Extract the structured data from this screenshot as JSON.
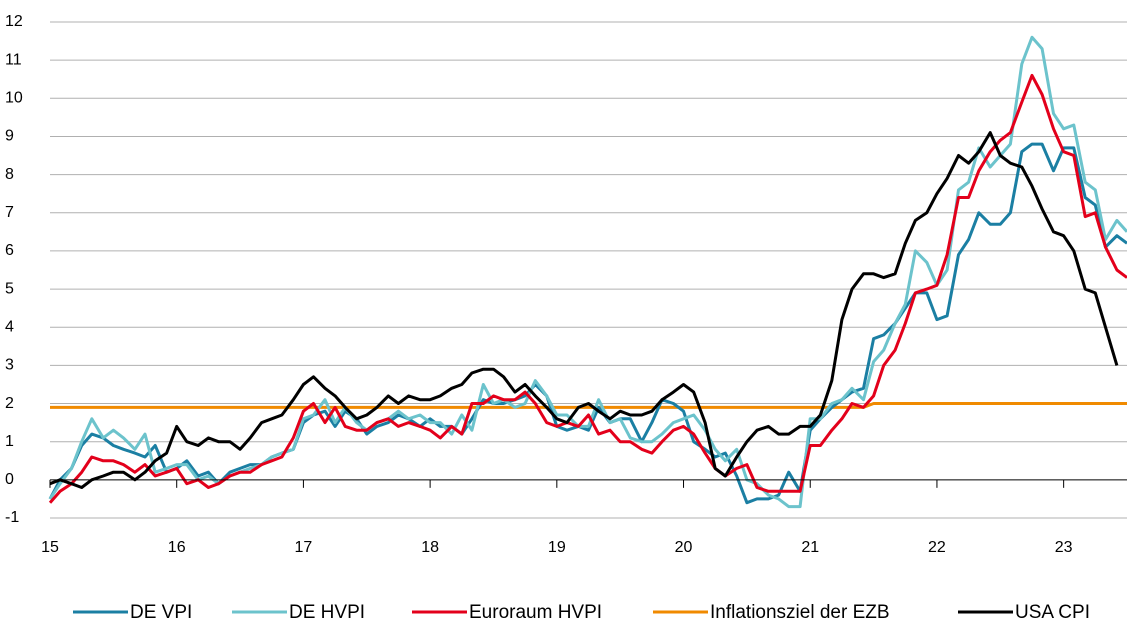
{
  "chart_data": {
    "type": "line",
    "x": [
      15.0,
      15.08,
      15.17,
      15.25,
      15.33,
      15.42,
      15.5,
      15.58,
      15.67,
      15.75,
      15.83,
      15.92,
      16.0,
      16.08,
      16.17,
      16.25,
      16.33,
      16.42,
      16.5,
      16.58,
      16.67,
      16.75,
      16.83,
      16.92,
      17.0,
      17.08,
      17.17,
      17.25,
      17.33,
      17.42,
      17.5,
      17.58,
      17.67,
      17.75,
      17.83,
      17.92,
      18.0,
      18.08,
      18.17,
      18.25,
      18.33,
      18.42,
      18.5,
      18.58,
      18.67,
      18.75,
      18.83,
      18.92,
      19.0,
      19.08,
      19.17,
      19.25,
      19.33,
      19.42,
      19.5,
      19.58,
      19.67,
      19.75,
      19.83,
      19.92,
      20.0,
      20.08,
      20.17,
      20.25,
      20.33,
      20.42,
      20.5,
      20.58,
      20.67,
      20.75,
      20.83,
      20.92,
      21.0,
      21.08,
      21.17,
      21.25,
      21.33,
      21.42,
      21.5,
      21.58,
      21.67,
      21.75,
      21.83,
      21.92,
      22.0,
      22.08,
      22.17,
      22.25,
      22.33,
      22.42,
      22.5,
      22.58,
      22.67,
      22.75,
      22.83,
      22.92,
      23.0,
      23.08,
      23.17,
      23.25,
      23.33,
      23.42,
      23.5
    ],
    "series": [
      {
        "name": "DE VPI",
        "color": "#1b7fa3",
        "values": [
          -0.5,
          0.0,
          0.3,
          0.9,
          1.2,
          1.1,
          0.9,
          0.8,
          0.7,
          0.6,
          0.9,
          0.2,
          0.3,
          0.5,
          0.1,
          0.2,
          -0.1,
          0.2,
          0.3,
          0.4,
          0.4,
          0.6,
          0.7,
          0.8,
          1.5,
          1.7,
          1.8,
          1.4,
          1.8,
          1.6,
          1.2,
          1.4,
          1.5,
          1.7,
          1.6,
          1.4,
          1.6,
          1.4,
          1.4,
          1.2,
          1.6,
          2.1,
          2.0,
          2.0,
          2.1,
          2.2,
          2.5,
          2.2,
          1.4,
          1.3,
          1.4,
          1.3,
          1.9,
          1.5,
          1.6,
          1.6,
          1.0,
          1.5,
          2.1,
          2.0,
          1.8,
          1.0,
          0.8,
          0.6,
          0.7,
          0.1,
          -0.6,
          -0.5,
          -0.5,
          -0.4,
          0.2,
          -0.3,
          1.3,
          1.6,
          1.9,
          2.1,
          2.3,
          2.4,
          3.7,
          3.8,
          4.1,
          4.5,
          4.9,
          4.9,
          4.2,
          4.3,
          5.9,
          6.3,
          7.0,
          6.7,
          6.7,
          7.0,
          8.6,
          8.8,
          8.8,
          8.1,
          8.7,
          8.7,
          7.4,
          7.2,
          6.1,
          6.4,
          6.2
        ]
      },
      {
        "name": "DE HVPI",
        "color": "#6cc3cc",
        "values": [
          -0.5,
          -0.1,
          0.3,
          1.0,
          1.6,
          1.1,
          1.3,
          1.1,
          0.8,
          1.2,
          0.2,
          0.3,
          0.4,
          0.4,
          0.0,
          0.1,
          -0.1,
          0.1,
          0.2,
          0.3,
          0.4,
          0.6,
          0.7,
          0.8,
          1.6,
          1.7,
          2.1,
          1.5,
          1.9,
          1.5,
          1.3,
          1.5,
          1.6,
          1.8,
          1.6,
          1.7,
          1.5,
          1.5,
          1.2,
          1.7,
          1.3,
          2.5,
          2.0,
          2.1,
          1.9,
          2.0,
          2.6,
          2.2,
          1.7,
          1.7,
          1.4,
          1.4,
          2.1,
          1.5,
          1.6,
          1.1,
          1.0,
          1.0,
          1.2,
          1.5,
          1.6,
          1.7,
          1.3,
          0.8,
          0.5,
          0.8,
          0.0,
          -0.1,
          -0.4,
          -0.5,
          -0.7,
          -0.7,
          1.6,
          1.6,
          2.0,
          2.1,
          2.4,
          2.1,
          3.1,
          3.4,
          4.1,
          4.6,
          6.0,
          5.7,
          5.1,
          5.5,
          7.6,
          7.8,
          8.7,
          8.2,
          8.5,
          8.8,
          10.9,
          11.6,
          11.3,
          9.6,
          9.2,
          9.3,
          7.8,
          7.6,
          6.3,
          6.8,
          6.5
        ]
      },
      {
        "name": "Euroraum HVPI",
        "color": "#e3001b",
        "values": [
          -0.6,
          -0.3,
          -0.1,
          0.2,
          0.6,
          0.5,
          0.5,
          0.4,
          0.2,
          0.4,
          0.1,
          0.2,
          0.3,
          -0.1,
          0.0,
          -0.2,
          -0.1,
          0.1,
          0.2,
          0.2,
          0.4,
          0.5,
          0.6,
          1.1,
          1.8,
          2.0,
          1.5,
          1.9,
          1.4,
          1.3,
          1.3,
          1.5,
          1.6,
          1.4,
          1.5,
          1.4,
          1.3,
          1.1,
          1.4,
          1.2,
          2.0,
          2.0,
          2.2,
          2.1,
          2.1,
          2.3,
          2.0,
          1.5,
          1.4,
          1.5,
          1.4,
          1.7,
          1.2,
          1.3,
          1.0,
          1.0,
          0.8,
          0.7,
          1.0,
          1.3,
          1.4,
          1.2,
          0.7,
          0.3,
          0.1,
          0.3,
          0.4,
          -0.2,
          -0.3,
          -0.3,
          -0.3,
          -0.3,
          0.9,
          0.9,
          1.3,
          1.6,
          2.0,
          1.9,
          2.2,
          3.0,
          3.4,
          4.1,
          4.9,
          5.0,
          5.1,
          5.9,
          7.4,
          7.4,
          8.1,
          8.6,
          8.9,
          9.1,
          9.9,
          10.6,
          10.1,
          9.2,
          8.6,
          8.5,
          6.9,
          7.0,
          6.1,
          5.5,
          5.3
        ]
      },
      {
        "name": "Inflationsziel der EZB",
        "color": "#f08a00",
        "values": [
          1.9,
          1.9,
          1.9,
          1.9,
          1.9,
          1.9,
          1.9,
          1.9,
          1.9,
          1.9,
          1.9,
          1.9,
          1.9,
          1.9,
          1.9,
          1.9,
          1.9,
          1.9,
          1.9,
          1.9,
          1.9,
          1.9,
          1.9,
          1.9,
          1.9,
          1.9,
          1.9,
          1.9,
          1.9,
          1.9,
          1.9,
          1.9,
          1.9,
          1.9,
          1.9,
          1.9,
          1.9,
          1.9,
          1.9,
          1.9,
          1.9,
          1.9,
          1.9,
          1.9,
          1.9,
          1.9,
          1.9,
          1.9,
          1.9,
          1.9,
          1.9,
          1.9,
          1.9,
          1.9,
          1.9,
          1.9,
          1.9,
          1.9,
          1.9,
          1.9,
          1.9,
          1.9,
          1.9,
          1.9,
          1.9,
          1.9,
          1.9,
          1.9,
          1.9,
          1.9,
          1.9,
          1.9,
          1.9,
          1.9,
          1.9,
          1.9,
          1.9,
          1.9,
          2.0,
          2.0,
          2.0,
          2.0,
          2.0,
          2.0,
          2.0,
          2.0,
          2.0,
          2.0,
          2.0,
          2.0,
          2.0,
          2.0,
          2.0,
          2.0,
          2.0,
          2.0,
          2.0,
          2.0,
          2.0,
          2.0,
          2.0,
          2.0,
          2.0
        ]
      },
      {
        "name": "USA CPI",
        "color": "#000000",
        "values": [
          -0.1,
          0.0,
          -0.1,
          -0.2,
          0.0,
          0.1,
          0.2,
          0.2,
          0.0,
          0.2,
          0.5,
          0.7,
          1.4,
          1.0,
          0.9,
          1.1,
          1.0,
          1.0,
          0.8,
          1.1,
          1.5,
          1.6,
          1.7,
          2.1,
          2.5,
          2.7,
          2.4,
          2.2,
          1.9,
          1.6,
          1.7,
          1.9,
          2.2,
          2.0,
          2.2,
          2.1,
          2.1,
          2.2,
          2.4,
          2.5,
          2.8,
          2.9,
          2.9,
          2.7,
          2.3,
          2.5,
          2.2,
          1.9,
          1.6,
          1.5,
          1.9,
          2.0,
          1.8,
          1.6,
          1.8,
          1.7,
          1.7,
          1.8,
          2.1,
          2.3,
          2.5,
          2.3,
          1.5,
          0.3,
          0.1,
          0.6,
          1.0,
          1.3,
          1.4,
          1.2,
          1.2,
          1.4,
          1.4,
          1.7,
          2.6,
          4.2,
          5.0,
          5.4,
          5.4,
          5.3,
          5.4,
          6.2,
          6.8,
          7.0,
          7.5,
          7.9,
          8.5,
          8.3,
          8.6,
          9.1,
          8.5,
          8.3,
          8.2,
          7.7,
          7.1,
          6.5,
          6.4,
          6.0,
          5.0,
          4.9,
          4.0,
          3.0,
          null
        ]
      }
    ],
    "xlim": [
      15,
      23.5
    ],
    "xticks": [
      15,
      16,
      17,
      18,
      19,
      20,
      21,
      22,
      23
    ],
    "ylim": [
      -1,
      12
    ],
    "yticks": [
      -1,
      0,
      1,
      2,
      3,
      4,
      5,
      6,
      7,
      8,
      9,
      10,
      11,
      12
    ],
    "grid": true,
    "legend": "bottom"
  }
}
